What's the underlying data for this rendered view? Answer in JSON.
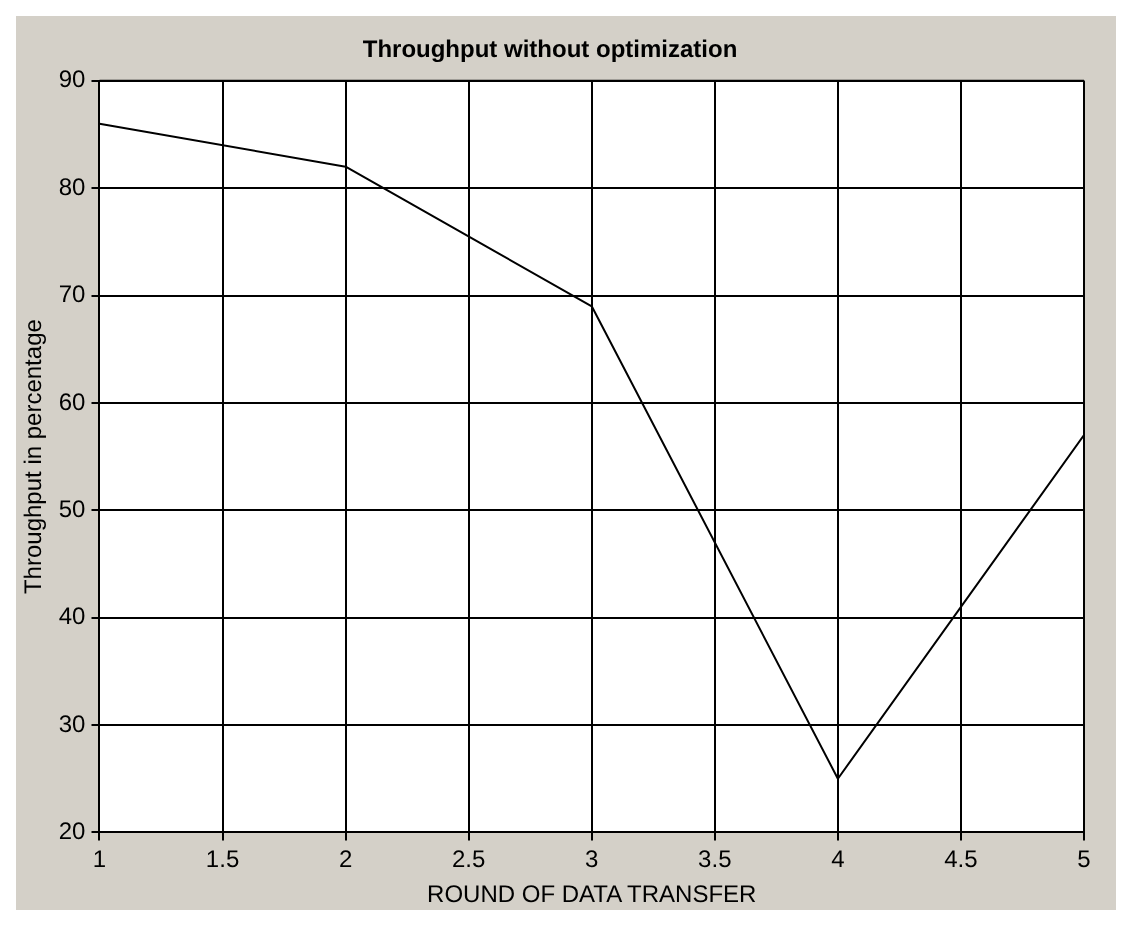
{
  "chart_data": {
    "type": "line",
    "title": "Throughput without optimization",
    "xlabel": "ROUND OF DATA TRANSFER",
    "ylabel": "Throughput in percentage",
    "x": [
      1,
      2,
      3,
      4,
      5
    ],
    "series": [
      {
        "color": "#000000",
        "values": [
          86,
          82,
          69,
          25,
          57
        ]
      }
    ],
    "xlim": [
      1,
      5
    ],
    "xticks": [
      1,
      1.5,
      2,
      2.5,
      3,
      3.5,
      4,
      4.5,
      5
    ],
    "ylim": [
      20,
      90
    ],
    "yticks": [
      20,
      30,
      40,
      50,
      60,
      70,
      80,
      90
    ],
    "grid": true,
    "line_style": "solid",
    "marker": "none",
    "legend": false
  }
}
